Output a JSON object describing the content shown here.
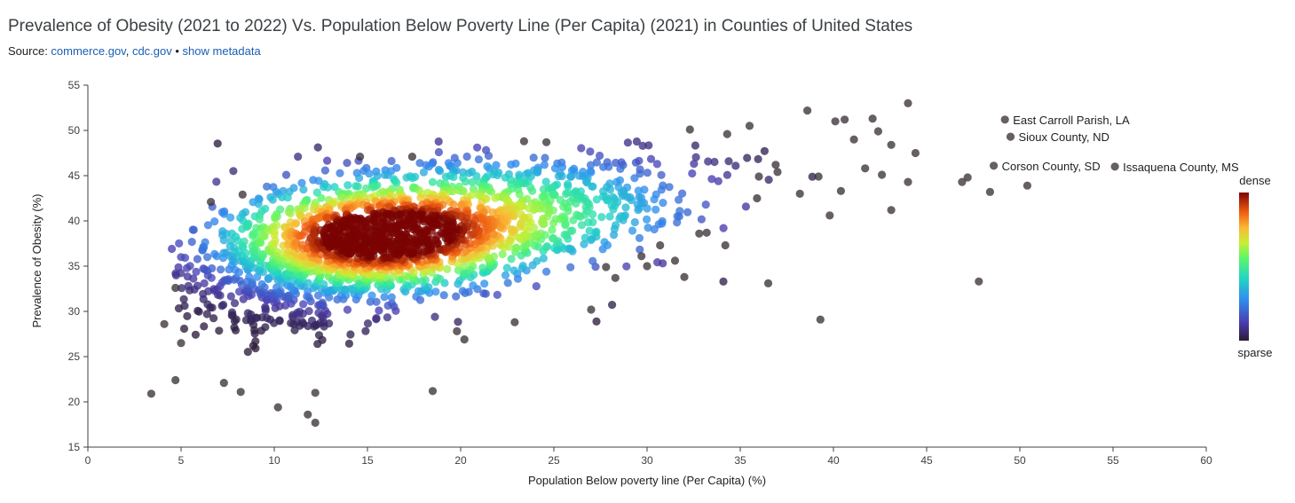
{
  "title": "Prevalence of Obesity (2021 to 2022) Vs. Population Below Poverty Line (Per Capita) (2021) in Counties of United States",
  "source": {
    "prefix": "Source: ",
    "links": [
      "commerce.gov",
      "cdc.gov"
    ],
    "separator": ", ",
    "bullet": " • ",
    "metadata_link": "show metadata"
  },
  "chart_data": {
    "type": "scatter",
    "xlabel": "Population Below poverty line (Per Capita) (%)",
    "ylabel": "Prevalence of Obesity (%)",
    "xlim": [
      0,
      60
    ],
    "ylim": [
      15,
      55
    ],
    "x_ticks": [
      "0",
      "5",
      "10",
      "15",
      "20",
      "25",
      "30",
      "35",
      "40",
      "45",
      "50",
      "55",
      "60"
    ],
    "y_ticks": [
      "15",
      "20",
      "25",
      "30",
      "35",
      "40",
      "45",
      "50",
      "55"
    ],
    "color_encoding": "point density",
    "legend": {
      "high_label": "dense",
      "low_label": "sparse",
      "placement": "right"
    },
    "labeled_points": [
      {
        "name": "East Carroll Parish, LA",
        "x": 49.2,
        "y": 51.2
      },
      {
        "name": "Sioux County, ND",
        "x": 49.5,
        "y": 49.3
      },
      {
        "name": "Corson County, SD",
        "x": 48.6,
        "y": 46.1
      },
      {
        "name": "Issaquena County, MS",
        "x": 55.1,
        "y": 46.0
      }
    ],
    "outlier_points": [
      {
        "x": 3.4,
        "y": 20.9
      },
      {
        "x": 4.7,
        "y": 22.4
      },
      {
        "x": 4.1,
        "y": 28.6
      },
      {
        "x": 5.0,
        "y": 26.5
      },
      {
        "x": 4.7,
        "y": 32.6
      },
      {
        "x": 6.6,
        "y": 42.1
      },
      {
        "x": 7.3,
        "y": 22.1
      },
      {
        "x": 8.2,
        "y": 21.1
      },
      {
        "x": 8.3,
        "y": 42.9
      },
      {
        "x": 10.2,
        "y": 19.4
      },
      {
        "x": 11.8,
        "y": 18.6
      },
      {
        "x": 12.2,
        "y": 17.7
      },
      {
        "x": 12.2,
        "y": 21.0
      },
      {
        "x": 14.6,
        "y": 47.1
      },
      {
        "x": 17.4,
        "y": 47.1
      },
      {
        "x": 18.5,
        "y": 21.2
      },
      {
        "x": 19.8,
        "y": 27.8
      },
      {
        "x": 20.2,
        "y": 26.9
      },
      {
        "x": 22.9,
        "y": 28.8
      },
      {
        "x": 23.4,
        "y": 48.8
      },
      {
        "x": 24.6,
        "y": 48.7
      },
      {
        "x": 27.0,
        "y": 30.2
      },
      {
        "x": 27.8,
        "y": 34.9
      },
      {
        "x": 28.3,
        "y": 33.7
      },
      {
        "x": 29.7,
        "y": 36.1
      },
      {
        "x": 30.0,
        "y": 35.0
      },
      {
        "x": 30.7,
        "y": 37.3
      },
      {
        "x": 31.5,
        "y": 35.6
      },
      {
        "x": 32.0,
        "y": 33.8
      },
      {
        "x": 32.3,
        "y": 50.1
      },
      {
        "x": 32.8,
        "y": 38.6
      },
      {
        "x": 33.2,
        "y": 38.7
      },
      {
        "x": 34.2,
        "y": 37.3
      },
      {
        "x": 34.3,
        "y": 49.6
      },
      {
        "x": 35.5,
        "y": 50.5
      },
      {
        "x": 36.5,
        "y": 33.1
      },
      {
        "x": 38.6,
        "y": 52.2
      },
      {
        "x": 39.3,
        "y": 29.1
      },
      {
        "x": 39.8,
        "y": 40.6
      },
      {
        "x": 40.1,
        "y": 51.0
      },
      {
        "x": 40.6,
        "y": 51.2
      },
      {
        "x": 41.1,
        "y": 49.0
      },
      {
        "x": 42.1,
        "y": 51.3
      },
      {
        "x": 42.4,
        "y": 49.9
      },
      {
        "x": 43.1,
        "y": 41.2
      },
      {
        "x": 43.1,
        "y": 48.4
      },
      {
        "x": 44.0,
        "y": 53.0
      },
      {
        "x": 44.0,
        "y": 44.3
      },
      {
        "x": 44.4,
        "y": 47.5
      },
      {
        "x": 46.9,
        "y": 44.3
      },
      {
        "x": 47.2,
        "y": 44.8
      },
      {
        "x": 47.8,
        "y": 33.3
      },
      {
        "x": 48.4,
        "y": 43.2
      },
      {
        "x": 50.4,
        "y": 43.9
      },
      {
        "x": 38.2,
        "y": 43.0
      },
      {
        "x": 37.0,
        "y": 45.4
      },
      {
        "x": 36.0,
        "y": 44.9
      },
      {
        "x": 41.7,
        "y": 45.8
      },
      {
        "x": 42.6,
        "y": 45.1
      },
      {
        "x": 40.4,
        "y": 43.3
      },
      {
        "x": 39.2,
        "y": 44.9
      },
      {
        "x": 35.9,
        "y": 42.5
      },
      {
        "x": 36.9,
        "y": 46.2
      }
    ]
  }
}
